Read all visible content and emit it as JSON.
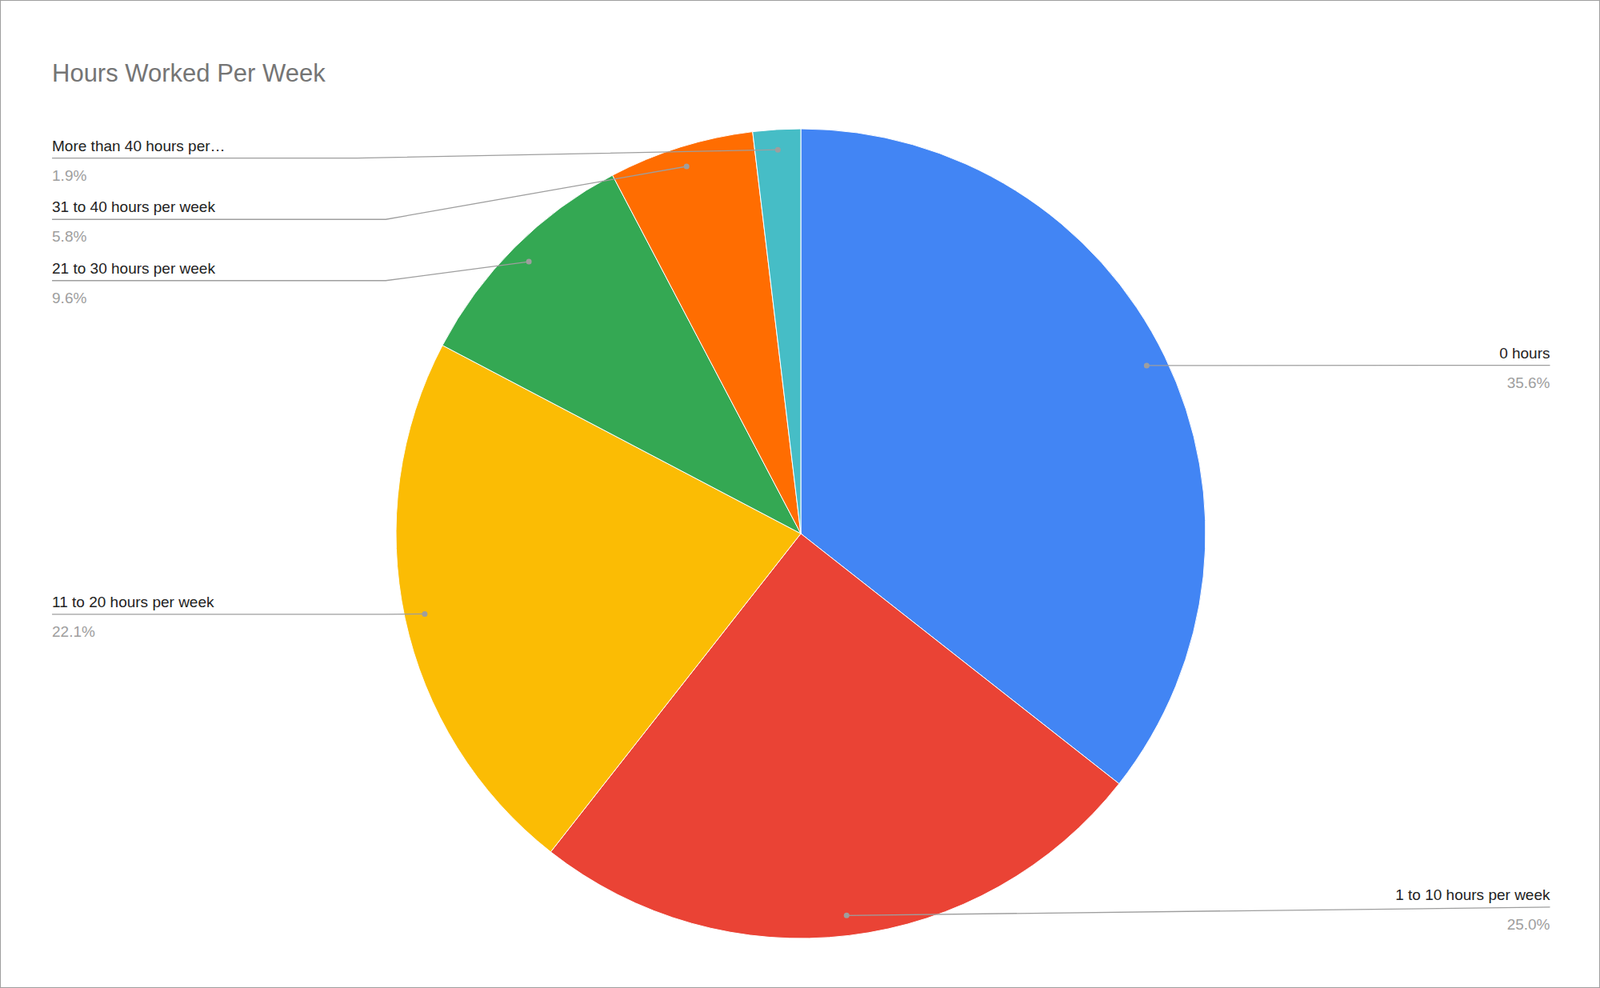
{
  "chart_data": {
    "type": "pie",
    "title": "Hours Worked Per Week",
    "categories": [
      "0 hours",
      "1 to 10 hours per week",
      "11 to 20 hours per week",
      "21 to 30 hours per week",
      "31 to 40 hours per week",
      "More than 40 hours per…"
    ],
    "values": [
      35.6,
      25.0,
      22.1,
      9.6,
      5.8,
      1.9
    ],
    "value_labels": [
      "35.6%",
      "25.0%",
      "22.1%",
      "9.6%",
      "5.8%",
      "1.9%"
    ],
    "colors": [
      "#4285f4",
      "#ea4335",
      "#fbbc04",
      "#34a853",
      "#ff6d01",
      "#46bdc6"
    ],
    "data_labels": true
  }
}
